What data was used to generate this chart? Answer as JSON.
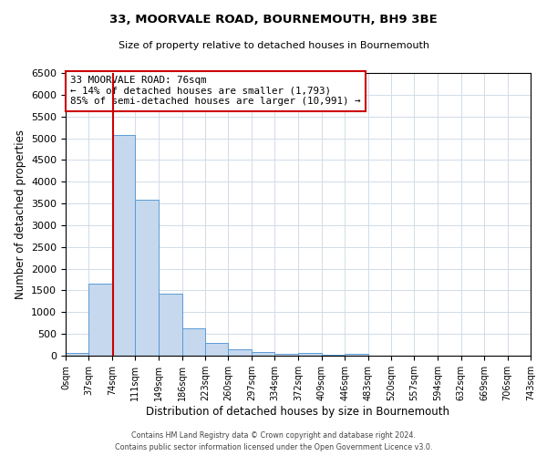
{
  "title": "33, MOORVALE ROAD, BOURNEMOUTH, BH9 3BE",
  "subtitle": "Size of property relative to detached houses in Bournemouth",
  "xlabel": "Distribution of detached houses by size in Bournemouth",
  "ylabel": "Number of detached properties",
  "bin_edges": [
    0,
    37,
    74,
    111,
    149,
    186,
    223,
    260,
    297,
    334,
    372,
    409,
    446,
    483,
    520,
    557,
    594,
    632,
    669,
    706,
    743
  ],
  "bin_counts": [
    70,
    1650,
    5080,
    3590,
    1430,
    620,
    300,
    150,
    80,
    40,
    60,
    20,
    50,
    0,
    0,
    0,
    0,
    0,
    0,
    0
  ],
  "bar_color": "#c5d8ed",
  "bar_edge_color": "#5b9bd5",
  "property_size": 76,
  "vline_color": "#cc0000",
  "annotation_text": "33 MOORVALE ROAD: 76sqm\n← 14% of detached houses are smaller (1,793)\n85% of semi-detached houses are larger (10,991) →",
  "annotation_box_color": "#ffffff",
  "annotation_box_edge_color": "#cc0000",
  "footer_line1": "Contains HM Land Registry data © Crown copyright and database right 2024.",
  "footer_line2": "Contains public sector information licensed under the Open Government Licence v3.0.",
  "ylim": [
    0,
    6500
  ],
  "ytick_interval": 500,
  "background_color": "#ffffff",
  "grid_color": "#d0dce8"
}
